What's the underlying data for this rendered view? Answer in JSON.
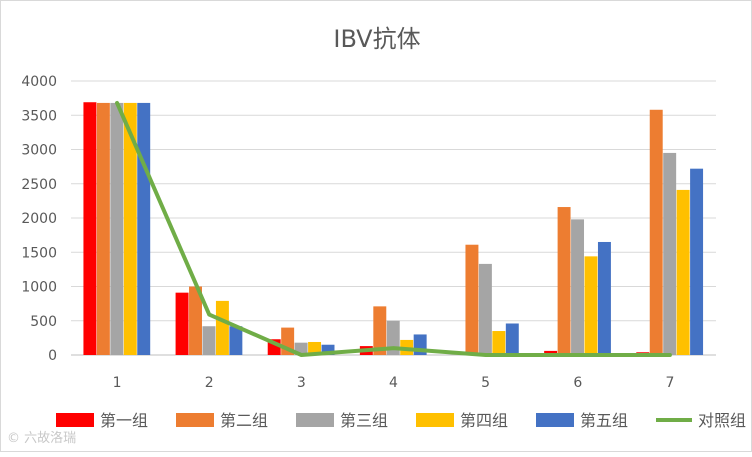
{
  "chart_data": {
    "type": "bar",
    "title": "IBV抗体",
    "categories": [
      "1",
      "2",
      "3",
      "4",
      "5",
      "6",
      "7"
    ],
    "ylim": [
      0,
      4000
    ],
    "yticks": [
      0,
      500,
      1000,
      1500,
      2000,
      2500,
      3000,
      3500,
      4000
    ],
    "grid": true,
    "legend": "bottom",
    "series": [
      {
        "name": "第一组",
        "type": "bar",
        "color": "#ff0000",
        "values": [
          3690,
          910,
          230,
          130,
          0,
          60,
          40
        ]
      },
      {
        "name": "第二组",
        "type": "bar",
        "color": "#ed7d31",
        "values": [
          3680,
          1000,
          400,
          710,
          1610,
          2160,
          3580
        ]
      },
      {
        "name": "第三组",
        "type": "bar",
        "color": "#a5a5a5",
        "values": [
          3680,
          420,
          180,
          500,
          1330,
          1980,
          2950
        ]
      },
      {
        "name": "第四组",
        "type": "bar",
        "color": "#ffc000",
        "values": [
          3680,
          790,
          190,
          220,
          350,
          1440,
          2410
        ]
      },
      {
        "name": "第五组",
        "type": "bar",
        "color": "#4472c4",
        "values": [
          3680,
          420,
          150,
          300,
          460,
          1650,
          2720
        ]
      },
      {
        "name": "对照组",
        "type": "line",
        "color": "#70ad47",
        "values": [
          3680,
          590,
          0,
          100,
          0,
          0,
          0
        ]
      }
    ]
  },
  "watermark": "© 六故洛瑞"
}
